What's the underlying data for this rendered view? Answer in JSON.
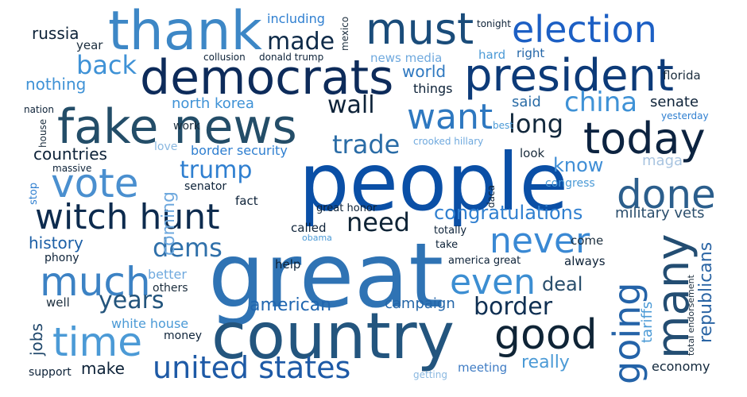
{
  "words": [
    {
      "text": "great",
      "color": "#2f73b4"
    },
    {
      "text": "people",
      "color": "#0a4fa6"
    },
    {
      "text": "country",
      "color": "#23557e"
    },
    {
      "text": "fake news",
      "color": "#234d68"
    },
    {
      "text": "thank",
      "color": "#3d87c6"
    },
    {
      "text": "democrats",
      "color": "#0d2b5a"
    },
    {
      "text": "president",
      "color": "#0c3a78"
    },
    {
      "text": "must",
      "color": "#1a4c7a"
    },
    {
      "text": "election",
      "color": "#1c5fc4"
    },
    {
      "text": "today",
      "color": "#0c2340"
    },
    {
      "text": "witch hunt",
      "color": "#0d2b4e"
    },
    {
      "text": "vote",
      "color": "#4a8fcf"
    },
    {
      "text": "time",
      "color": "#4b9ad6"
    },
    {
      "text": "much",
      "color": "#3c82c4"
    },
    {
      "text": "good",
      "color": "#0f2436"
    },
    {
      "text": "many",
      "color": "#234d72"
    },
    {
      "text": "going",
      "color": "#2463a8"
    },
    {
      "text": "want",
      "color": "#2e78c0"
    },
    {
      "text": "never",
      "color": "#3a89d4"
    },
    {
      "text": "even",
      "color": "#3c8ed2"
    },
    {
      "text": "done",
      "color": "#2b5e8c"
    },
    {
      "text": "united states",
      "color": "#1e5aa6"
    },
    {
      "text": "trump",
      "color": "#2f7fd0"
    },
    {
      "text": "years",
      "color": "#23547c"
    },
    {
      "text": "border",
      "color": "#0f2f52"
    },
    {
      "text": "made",
      "color": "#0e2a48"
    },
    {
      "text": "wall",
      "color": "#0d2238"
    },
    {
      "text": "china",
      "color": "#3f92d6"
    },
    {
      "text": "back",
      "color": "#3f92d6"
    },
    {
      "text": "trade",
      "color": "#2a6ca6"
    },
    {
      "text": "long",
      "color": "#12283c"
    },
    {
      "text": "need",
      "color": "#0f2436"
    },
    {
      "text": "dems",
      "color": "#2f70aa"
    },
    {
      "text": "know",
      "color": "#3f8ed6"
    },
    {
      "text": "coming",
      "color": "#6fa9de"
    },
    {
      "text": "congratulations",
      "color": "#2f7fd0"
    },
    {
      "text": "republicans",
      "color": "#2b65a4"
    },
    {
      "text": "really",
      "color": "#4b9ad6"
    },
    {
      "text": "american",
      "color": "#2066b0"
    },
    {
      "text": "deal",
      "color": "#294e6c"
    },
    {
      "text": "jobs",
      "color": "#21486c"
    },
    {
      "text": "make",
      "color": "#0d2238"
    },
    {
      "text": "russia",
      "color": "#0d2238"
    },
    {
      "text": "nothing",
      "color": "#3f92d6"
    },
    {
      "text": "north korea",
      "color": "#3f92d6"
    },
    {
      "text": "world",
      "color": "#2e78c0"
    },
    {
      "text": "countries",
      "color": "#0d2238"
    },
    {
      "text": "history",
      "color": "#1c5fa6"
    },
    {
      "text": "campaign",
      "color": "#2466a8"
    },
    {
      "text": "senate",
      "color": "#0d2238"
    },
    {
      "text": "said",
      "color": "#2a6ca6"
    },
    {
      "text": "tariffs",
      "color": "#4b9ad6"
    },
    {
      "text": "military vets",
      "color": "#2b4e6c"
    },
    {
      "text": "border security",
      "color": "#2f7fd0"
    },
    {
      "text": "including",
      "color": "#2f7fd0"
    },
    {
      "text": "maga",
      "color": "#a8c4e0"
    },
    {
      "text": "white house",
      "color": "#4b9ad6"
    },
    {
      "text": "economy",
      "color": "#12283c"
    },
    {
      "text": "better",
      "color": "#6fa9de"
    },
    {
      "text": "things",
      "color": "#0d2238"
    },
    {
      "text": "news media",
      "color": "#6fa9de"
    },
    {
      "text": "florida",
      "color": "#1a2c3c"
    },
    {
      "text": "hard",
      "color": "#4b9ad6"
    },
    {
      "text": "right",
      "color": "#2466a8"
    },
    {
      "text": "year",
      "color": "#1a2c3c"
    },
    {
      "text": "love",
      "color": "#8ab8e0"
    },
    {
      "text": "work",
      "color": "#1a2c3c"
    },
    {
      "text": "look",
      "color": "#1a2c3c"
    },
    {
      "text": "fact",
      "color": "#0d2238"
    },
    {
      "text": "called",
      "color": "#0d2238"
    },
    {
      "text": "help",
      "color": "#0d2238"
    },
    {
      "text": "come",
      "color": "#1a2c3c"
    },
    {
      "text": "always",
      "color": "#0d2238"
    },
    {
      "text": "others",
      "color": "#1a2c3c"
    },
    {
      "text": "well",
      "color": "#1a2c3c"
    },
    {
      "text": "money",
      "color": "#0d2238"
    },
    {
      "text": "support",
      "color": "#0d2238"
    },
    {
      "text": "meeting",
      "color": "#3f7cc4"
    },
    {
      "text": "phony",
      "color": "#0d2238"
    },
    {
      "text": "senator",
      "color": "#0d2238"
    },
    {
      "text": "congress",
      "color": "#4b9ad6"
    },
    {
      "text": "great honor",
      "color": "#0d2238"
    },
    {
      "text": "totally",
      "color": "#0d2238"
    },
    {
      "text": "take",
      "color": "#0d2238"
    },
    {
      "text": "america great",
      "color": "#0d2238"
    },
    {
      "text": "collusion",
      "color": "#0d2238"
    },
    {
      "text": "donald trump",
      "color": "#0d2238"
    },
    {
      "text": "tonight",
      "color": "#0d2238"
    },
    {
      "text": "mexico",
      "color": "#1a2c3c"
    },
    {
      "text": "nation",
      "color": "#0d2238"
    },
    {
      "text": "house",
      "color": "#1a2c3c"
    },
    {
      "text": "massive",
      "color": "#0d2238"
    },
    {
      "text": "stop",
      "color": "#2f7fd0"
    },
    {
      "text": "best",
      "color": "#4b9ad6"
    },
    {
      "text": "crooked hillary",
      "color": "#6fa9de"
    },
    {
      "text": "daca",
      "color": "#0d2238"
    },
    {
      "text": "yesterday",
      "color": "#2f7fd0"
    },
    {
      "text": "obama",
      "color": "#4b9ad6"
    },
    {
      "text": "total endorsement",
      "color": "#1a2c3c"
    },
    {
      "text": "getting",
      "color": "#8ab8e0"
    }
  ]
}
